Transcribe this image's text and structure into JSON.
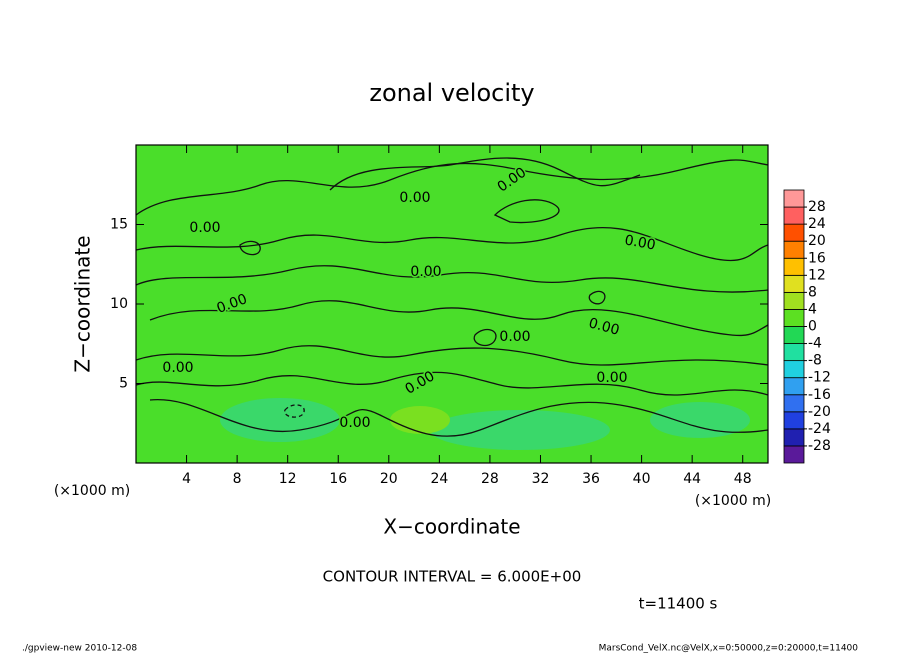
{
  "chart_data": {
    "type": "contour",
    "title": "zonal velocity",
    "x_label": "X−coordinate",
    "y_label": "Z−coordinate",
    "x_unit": "(×1000 m)",
    "y_unit": "(×1000 m)",
    "xlim": [
      0,
      50
    ],
    "xticks": [
      4,
      8,
      12,
      16,
      20,
      24,
      28,
      32,
      36,
      40,
      44,
      48
    ],
    "ylim": [
      0,
      20
    ],
    "yticks": [
      5,
      10,
      15
    ],
    "colorbar": {
      "ylim": [
        -32,
        32
      ],
      "yticks": [
        28,
        24,
        20,
        16,
        12,
        8,
        4,
        0,
        -4,
        -8,
        -12,
        -16,
        -20,
        -24,
        -28
      ],
      "levels": [
        -32,
        -28,
        -24,
        -20,
        -16,
        -12,
        -8,
        -4,
        0,
        4,
        8,
        12,
        16,
        20,
        24,
        28,
        32
      ],
      "colors": [
        "#5a1a9a",
        "#2020b0",
        "#2040e0",
        "#3070f0",
        "#30a0f0",
        "#20d0e0",
        "#20e0a0",
        "#22d855",
        "#5ce022",
        "#a0e020",
        "#e0e020",
        "#ffc000",
        "#ff8000",
        "#ff5000",
        "#ff6060",
        "#ff9898"
      ]
    },
    "contour_labels": [
      "0.00",
      "0.00",
      "0.00",
      "0.00",
      "0.00",
      "0.00",
      "0.00",
      "0.00",
      "0.00",
      "0.00",
      "0.00",
      "0.00"
    ],
    "contour_interval": "CONTOUR INTERVAL = 6.000E+00",
    "time": "t=11400 s",
    "footer_left": "./gpview-new  2010-12-08",
    "footer_right": "MarsCond_VelX.nc@VelX,x=0:50000,z=0:20000,t=11400"
  }
}
